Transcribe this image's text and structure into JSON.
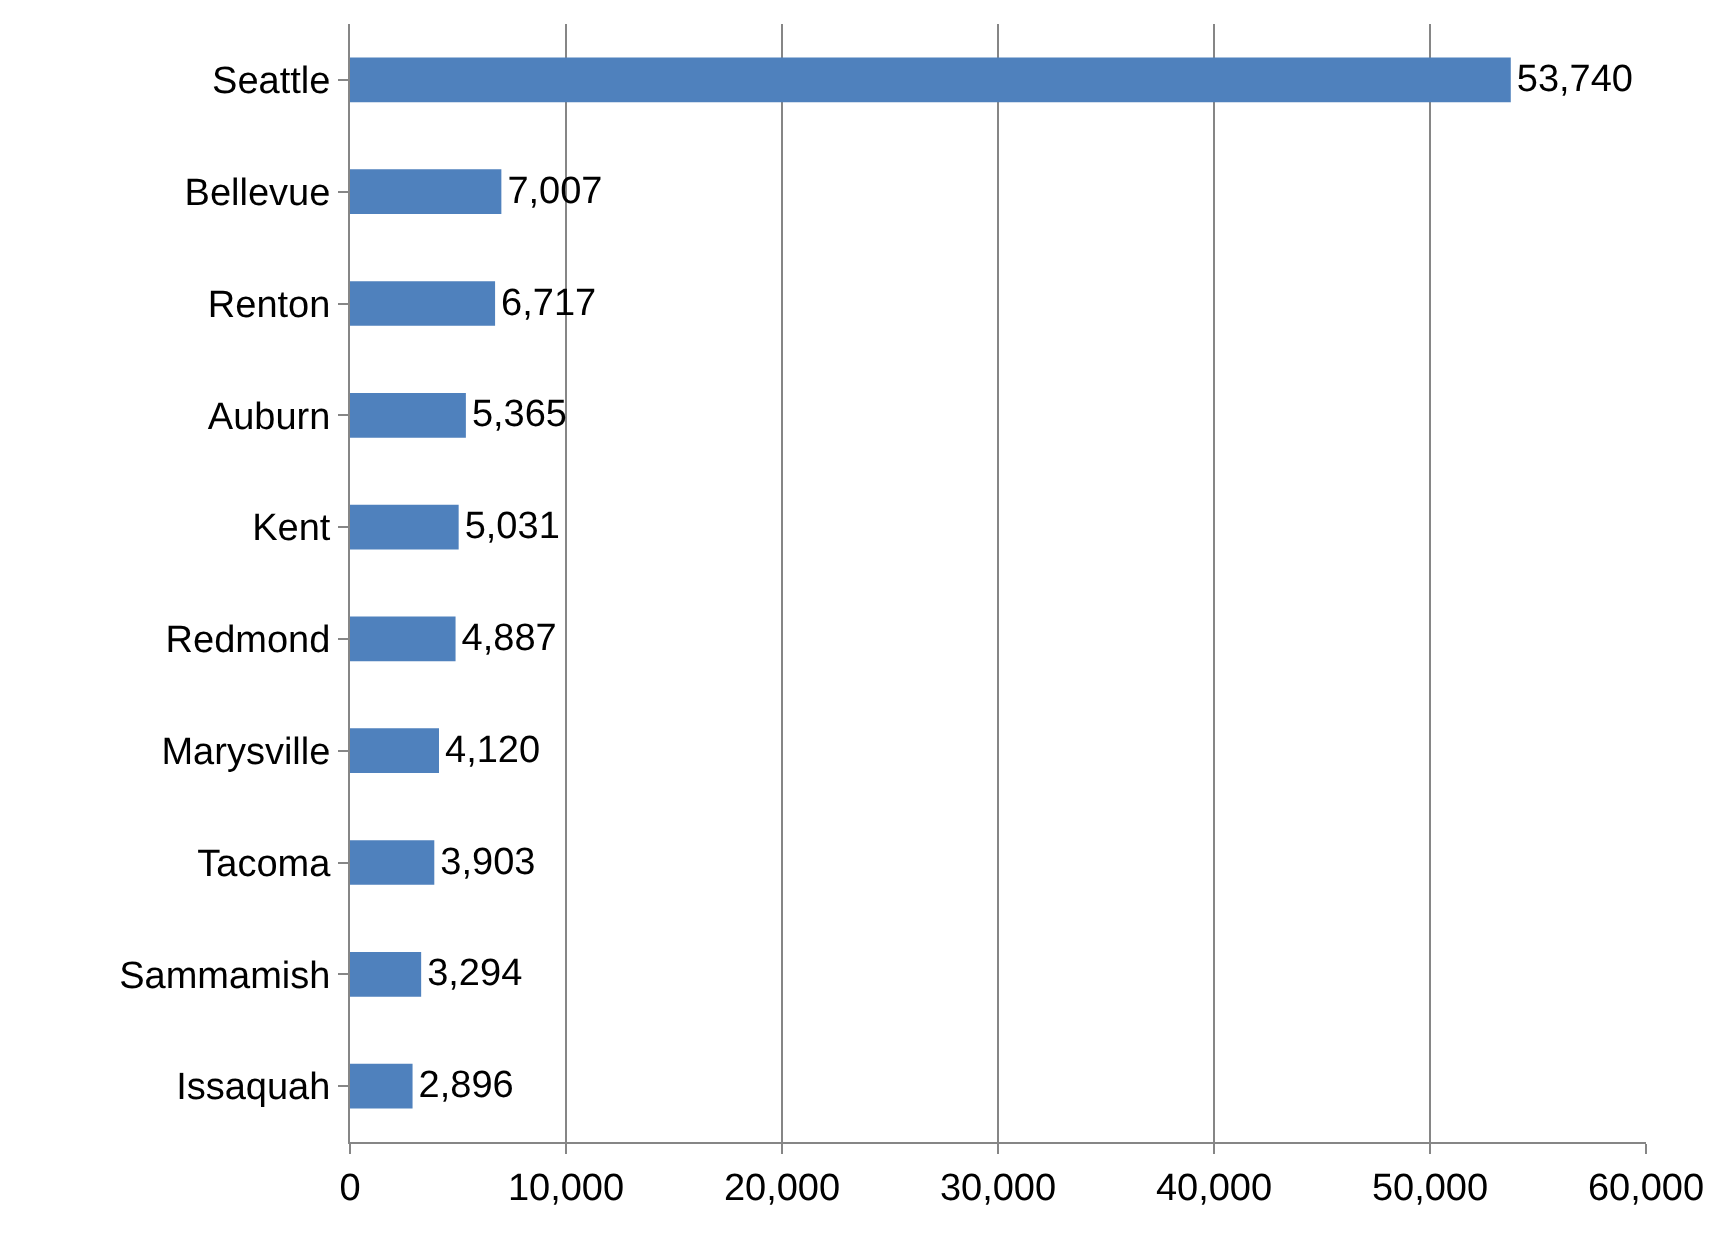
{
  "chart_data": {
    "type": "bar",
    "orientation": "horizontal",
    "categories": [
      "Seattle",
      "Bellevue",
      "Renton",
      "Auburn",
      "Kent",
      "Redmond",
      "Marysville",
      "Tacoma",
      "Sammamish",
      "Issaquah"
    ],
    "values": [
      53740,
      7007,
      6717,
      5365,
      5031,
      4887,
      4120,
      3903,
      3294,
      2896
    ],
    "value_labels": [
      "53,740",
      "7,007",
      "6,717",
      "5,365",
      "5,031",
      "4,887",
      "4,120",
      "3,903",
      "3,294",
      "2,896"
    ],
    "color": "#4f81bd",
    "xlim": [
      0,
      60000
    ],
    "xticks": [
      0,
      {
        "value": 10000,
        "label": "10,000"
      },
      {
        "value": 20000,
        "label": "20,000"
      },
      {
        "value": 30000,
        "label": "30,000"
      },
      {
        "value": 40000,
        "label": "40,000"
      },
      {
        "value": 50000,
        "label": "50,000"
      },
      {
        "value": 60000,
        "label": "60,000"
      }
    ],
    "grid": "x"
  }
}
